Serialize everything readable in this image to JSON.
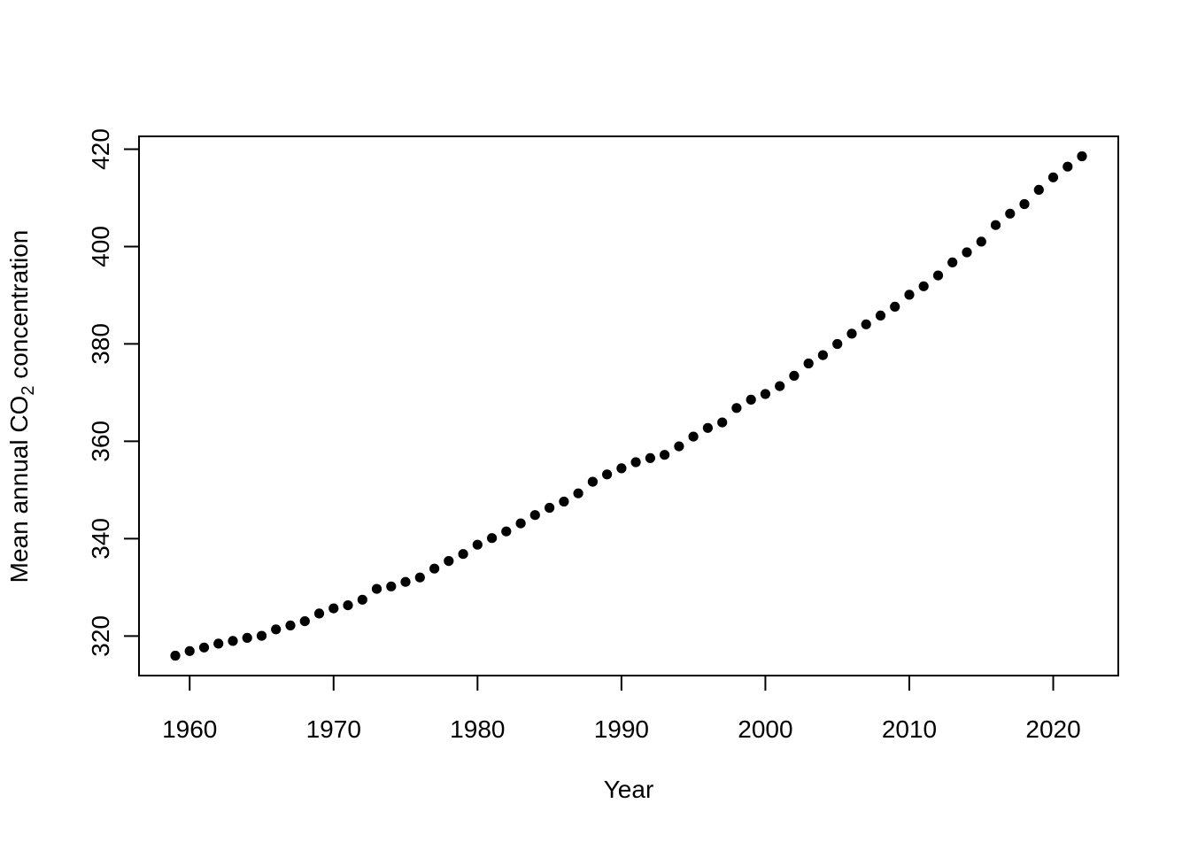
{
  "figure": {
    "background_color": "#ffffff",
    "foreground_color": "#000000"
  },
  "chart_data": {
    "type": "scatter",
    "title": "",
    "xlabel": "Year",
    "ylabel": "Mean annual CO2 concentration",
    "ylabel_pre": "Mean annual CO",
    "ylabel_sub": "2",
    "ylabel_post": " concentration",
    "marker": "filled-circle",
    "point_color": "#000000",
    "grid": false,
    "legend": "none",
    "xlim": [
      1956.48,
      2024.52
    ],
    "ylim": [
      311.88,
      422.63
    ],
    "x_ticks": [
      1960,
      1970,
      1980,
      1990,
      2000,
      2010,
      2020
    ],
    "y_ticks": [
      320,
      340,
      360,
      380,
      400,
      420
    ],
    "x": [
      1959,
      1960,
      1961,
      1962,
      1963,
      1964,
      1965,
      1966,
      1967,
      1968,
      1969,
      1970,
      1971,
      1972,
      1973,
      1974,
      1975,
      1976,
      1977,
      1978,
      1979,
      1980,
      1981,
      1982,
      1983,
      1984,
      1985,
      1986,
      1987,
      1988,
      1989,
      1990,
      1991,
      1992,
      1993,
      1994,
      1995,
      1996,
      1997,
      1998,
      1999,
      2000,
      2001,
      2002,
      2003,
      2004,
      2005,
      2006,
      2007,
      2008,
      2009,
      2010,
      2011,
      2012,
      2013,
      2014,
      2015,
      2016,
      2017,
      2018,
      2019,
      2020,
      2021,
      2022
    ],
    "y": [
      315.98,
      316.91,
      317.64,
      318.45,
      318.99,
      319.62,
      320.04,
      321.37,
      322.18,
      323.05,
      324.62,
      325.68,
      326.32,
      327.46,
      329.68,
      330.19,
      331.12,
      332.03,
      333.84,
      335.41,
      336.84,
      338.76,
      340.12,
      341.48,
      343.15,
      344.85,
      346.35,
      347.61,
      349.31,
      351.69,
      353.2,
      354.45,
      355.7,
      356.54,
      357.21,
      358.96,
      360.97,
      362.74,
      363.88,
      366.84,
      368.54,
      369.71,
      371.32,
      373.45,
      375.98,
      377.7,
      379.98,
      382.09,
      384.02,
      385.83,
      387.64,
      390.1,
      391.85,
      394.06,
      396.74,
      398.81,
      401.01,
      404.41,
      406.76,
      408.72,
      411.65,
      414.21,
      416.41,
      418.53
    ]
  }
}
